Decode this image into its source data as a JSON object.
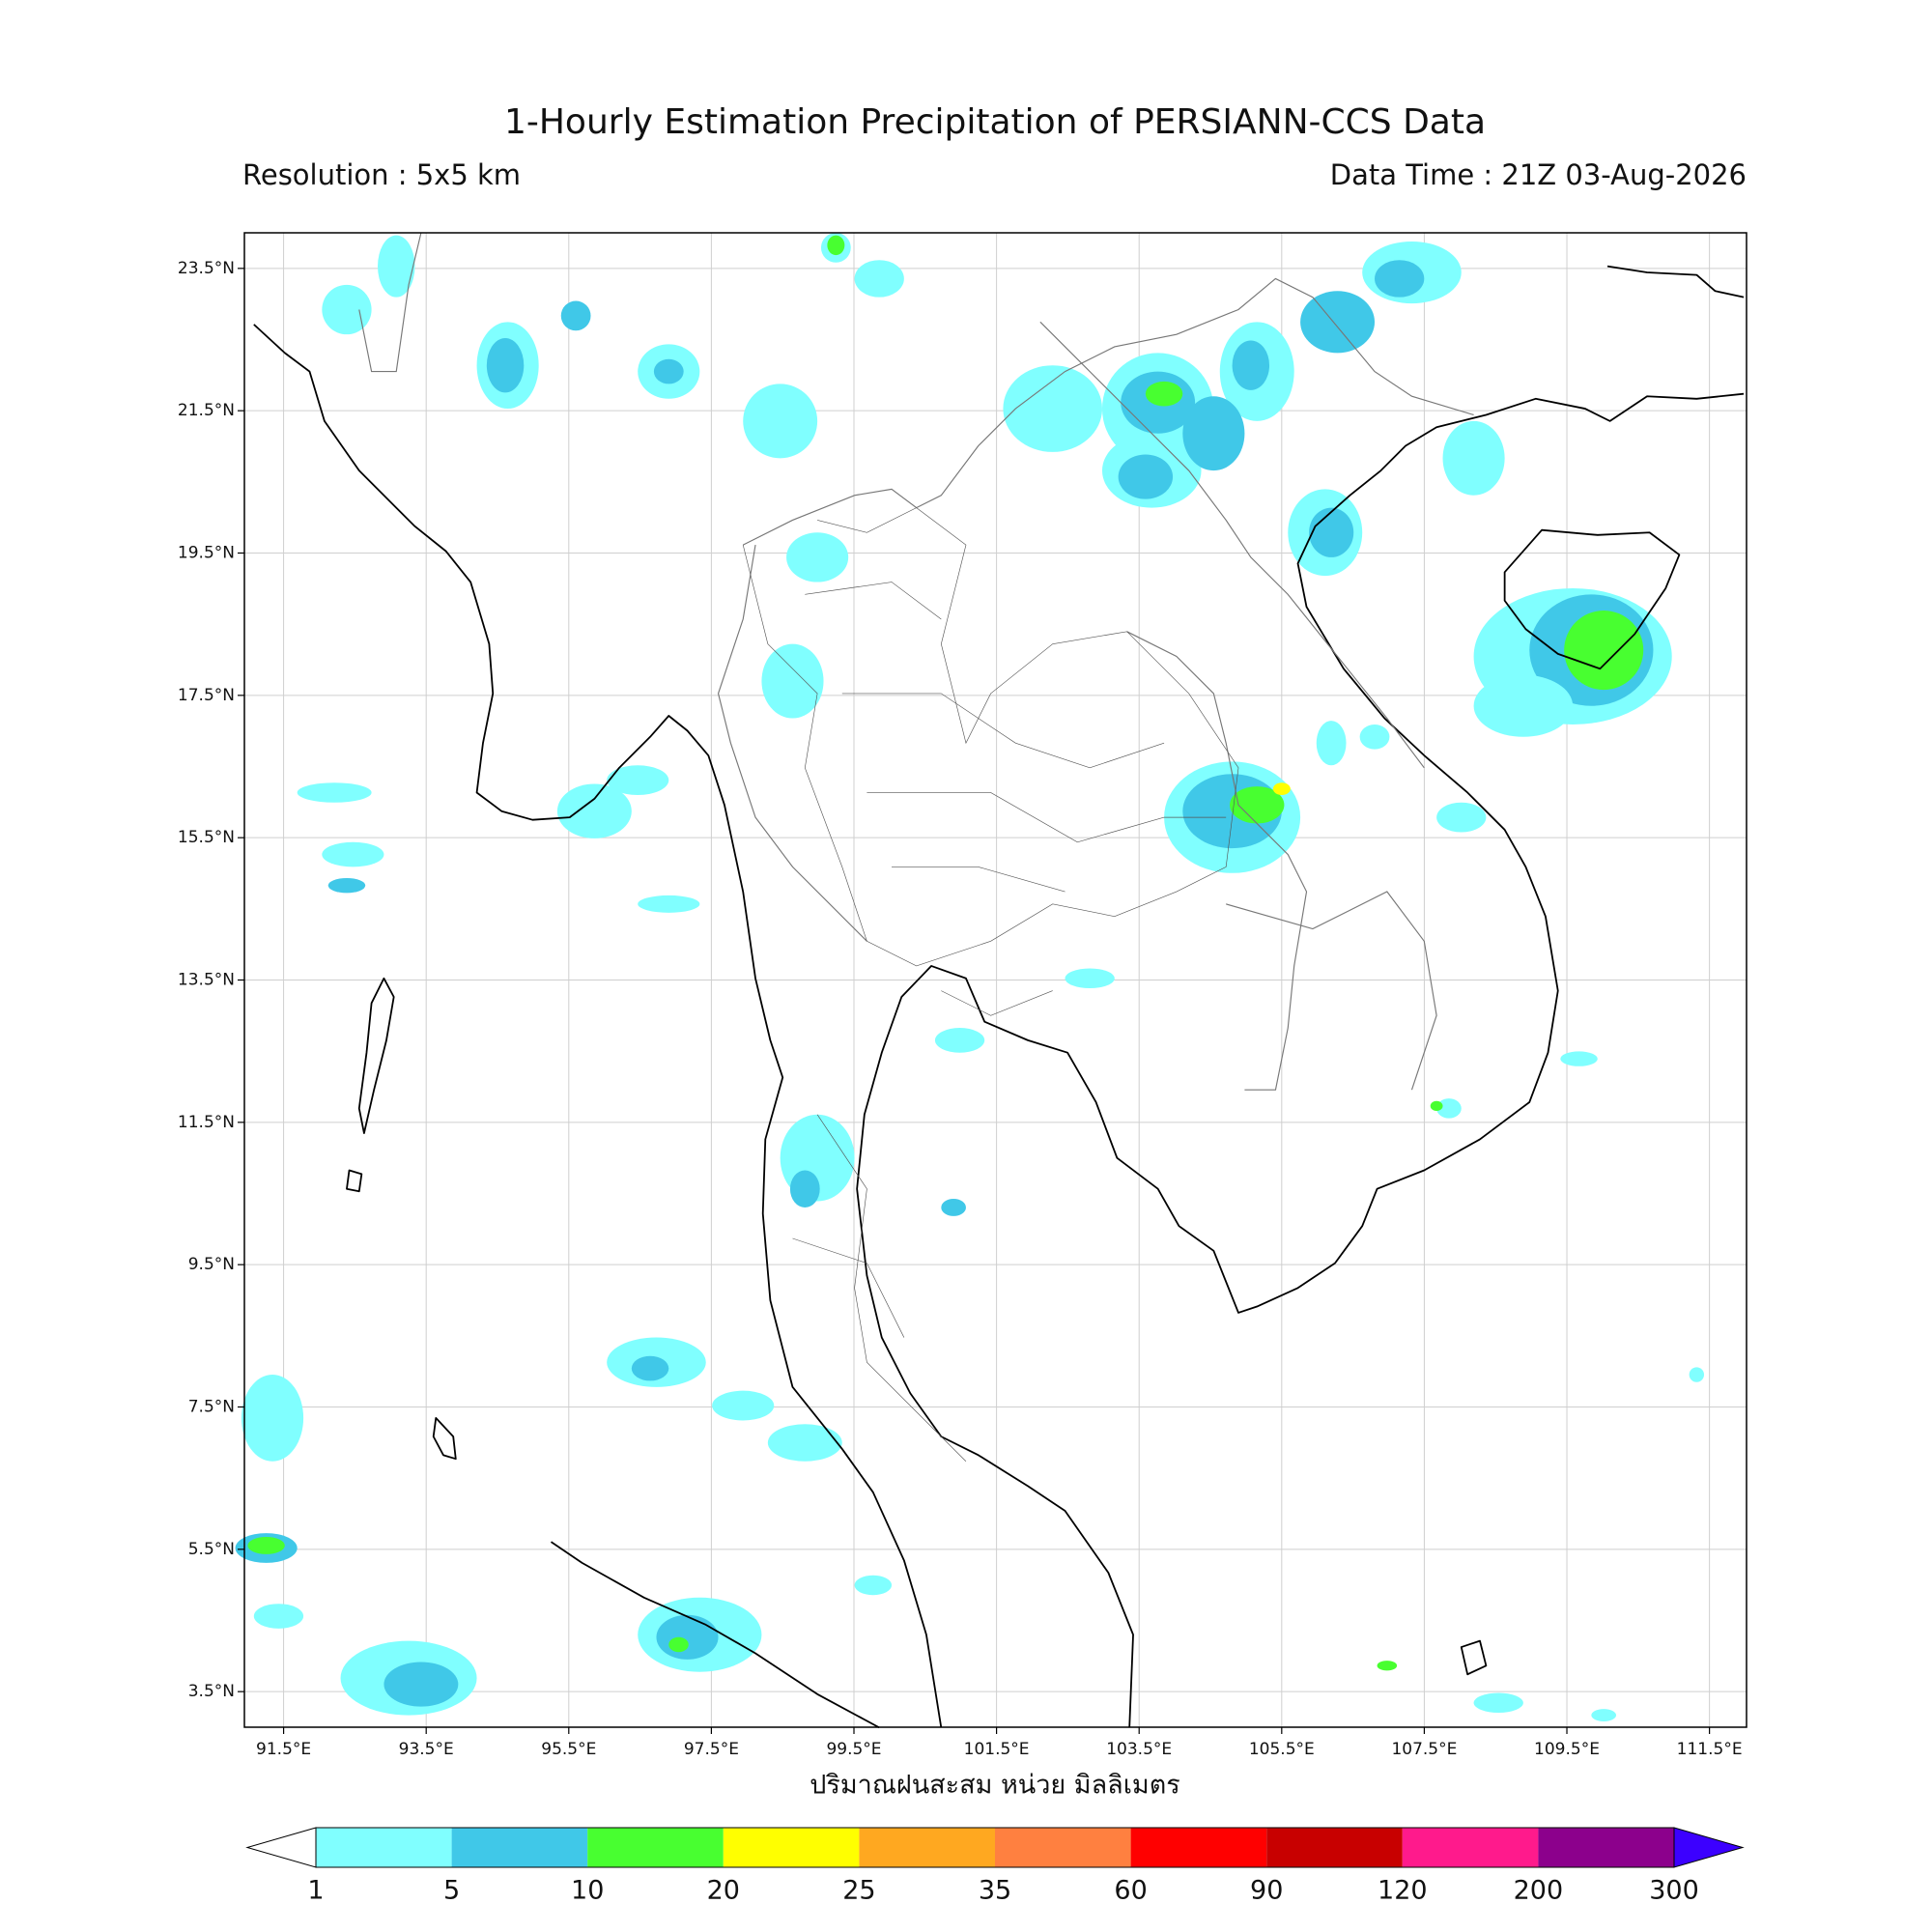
{
  "header": {
    "title": "1-Hourly Estimation Precipitation of PERSIANN-CCS Data",
    "resolution": "Resolution : 5x5 km",
    "data_time": "Data Time : 21Z 03-Aug-2026"
  },
  "map": {
    "lon_ticks": [
      {
        "value": 91.5,
        "label": "91.5°E"
      },
      {
        "value": 93.5,
        "label": "93.5°E"
      },
      {
        "value": 95.5,
        "label": "95.5°E"
      },
      {
        "value": 97.5,
        "label": "97.5°E"
      },
      {
        "value": 99.5,
        "label": "99.5°E"
      },
      {
        "value": 101.5,
        "label": "101.5°E"
      },
      {
        "value": 103.5,
        "label": "103.5°E"
      },
      {
        "value": 105.5,
        "label": "105.5°E"
      },
      {
        "value": 107.5,
        "label": "107.5°E"
      },
      {
        "value": 109.5,
        "label": "109.5°E"
      },
      {
        "value": 111.5,
        "label": "111.5°E"
      }
    ],
    "lat_ticks": [
      {
        "value": 23.5,
        "label": "23.5°N"
      },
      {
        "value": 21.5,
        "label": "21.5°N"
      },
      {
        "value": 19.5,
        "label": "19.5°N"
      },
      {
        "value": 17.5,
        "label": "17.5°N"
      },
      {
        "value": 15.5,
        "label": "15.5°N"
      },
      {
        "value": 13.5,
        "label": "13.5°N"
      },
      {
        "value": 11.5,
        "label": "11.5°N"
      },
      {
        "value": 9.5,
        "label": "9.5°N"
      },
      {
        "value": 7.5,
        "label": "7.5°N"
      },
      {
        "value": 5.5,
        "label": "5.5°N"
      },
      {
        "value": 3.5,
        "label": "3.5°N"
      }
    ],
    "xlabel": "ปริมาณฝนสะสม หน่วย มิลลิเมตร"
  },
  "colorbar": {
    "levels": [
      1,
      5,
      10,
      20,
      25,
      35,
      60,
      90,
      120,
      200,
      300
    ],
    "colors": [
      "#80ffff",
      "#40c8e8",
      "#48ff30",
      "#ffff00",
      "#ffa820",
      "#ff8040",
      "#ff0000",
      "#c80000",
      "#ff1a8c",
      "#8c008c",
      "#3c00ff"
    ]
  }
}
